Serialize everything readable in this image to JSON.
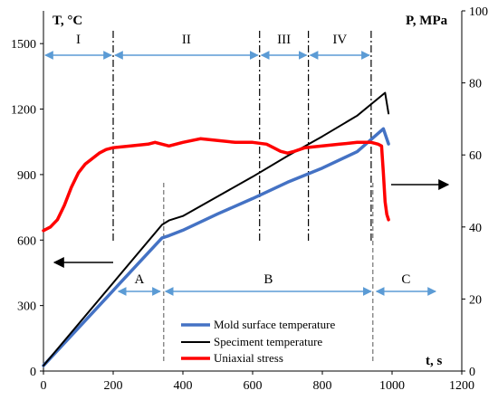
{
  "chart_data": {
    "type": "line",
    "x_axis": {
      "label": "t, s",
      "range": [
        0,
        1200
      ],
      "ticks": [
        "0",
        "200",
        "400",
        "600",
        "800",
        "1000",
        "1200"
      ]
    },
    "y_left": {
      "label": "T, °C",
      "range": [
        0,
        1650
      ],
      "ticks": [
        "0",
        "300",
        "600",
        "900",
        "1200",
        "1500"
      ]
    },
    "y_right": {
      "label": "P, MPa",
      "range": [
        0,
        100
      ],
      "ticks": [
        "0",
        "20",
        "40",
        "60",
        "80",
        "100"
      ]
    },
    "grid": false,
    "legend": {
      "position": "bottom-center",
      "entries": [
        "Mold surface temperature",
        "Speciment temperature",
        "Uniaxial stress"
      ]
    },
    "series": [
      {
        "name": "Mold surface temperature",
        "axis": "left",
        "color": "#4472C4",
        "x": [
          0,
          340,
          360,
          400,
          500,
          600,
          700,
          800,
          900,
          975,
          990
        ],
        "y": [
          25,
          610,
          620,
          645,
          720,
          790,
          865,
          930,
          1005,
          1110,
          1040
        ]
      },
      {
        "name": "Speciment temperature",
        "axis": "left",
        "color": "#000000",
        "x": [
          0,
          340,
          360,
          400,
          500,
          600,
          700,
          800,
          900,
          980,
          990
        ],
        "y": [
          25,
          670,
          690,
          710,
          800,
          890,
          985,
          1075,
          1170,
          1275,
          1180
        ]
      },
      {
        "name": "Uniaxial stress",
        "axis": "right",
        "color": "#FF0000",
        "x": [
          0,
          20,
          40,
          60,
          80,
          100,
          120,
          140,
          160,
          180,
          200,
          250,
          300,
          320,
          340,
          360,
          400,
          450,
          500,
          550,
          600,
          640,
          660,
          680,
          700,
          720,
          750,
          800,
          850,
          900,
          940,
          960,
          970,
          975,
          980,
          985,
          990
        ],
        "y": [
          39,
          40,
          42,
          46,
          51,
          55,
          57.5,
          59,
          60.5,
          61.5,
          62,
          62.5,
          63,
          63.5,
          63,
          62.5,
          63.5,
          64.5,
          64,
          63.5,
          63.5,
          63,
          62,
          61,
          60.5,
          61,
          62,
          62.5,
          63,
          63.5,
          63.5,
          63,
          62.5,
          55,
          47,
          43.5,
          42
        ]
      }
    ],
    "annotations": {
      "zones": [
        {
          "label": "I",
          "from": 0,
          "to": 200
        },
        {
          "label": "II",
          "from": 200,
          "to": 620
        },
        {
          "label": "III",
          "from": 620,
          "to": 760
        },
        {
          "label": "IV",
          "from": 760,
          "to": 940
        }
      ],
      "stages": [
        {
          "label": "A",
          "from": 210,
          "to": 340
        },
        {
          "label": "B",
          "from": 345,
          "to": 945
        },
        {
          "label": "C",
          "from": 950,
          "to": 1130
        }
      ],
      "zone_boundaries_x": [
        200,
        620,
        760,
        940
      ],
      "stage_boundaries_x": [
        345,
        945
      ]
    }
  }
}
